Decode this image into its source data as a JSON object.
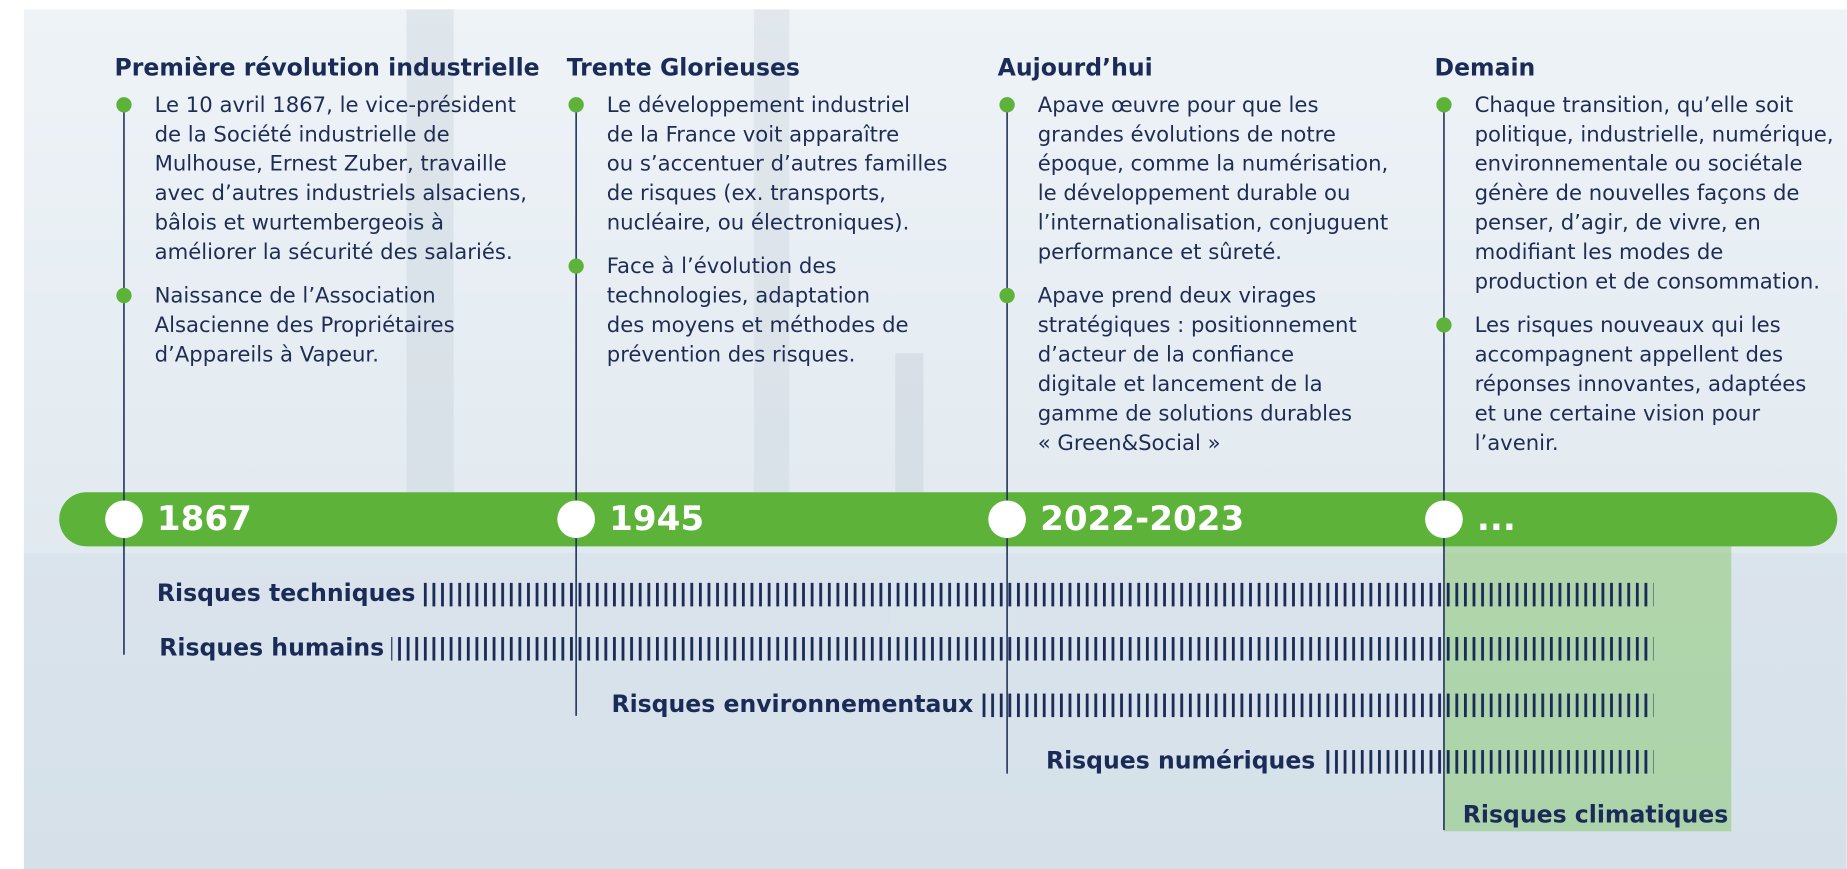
{
  "periods": [
    {
      "title": "Première révolution industrielle",
      "year": "1867",
      "bullets": [
        [
          "Le 10 avril 1867, le vice-président",
          "de la Société industrielle de",
          "Mulhouse, Ernest Zuber, travaille",
          "avec d’autres industriels alsaciens,",
          "bâlois et wurtembergeois à",
          "améliorer la sécurité des salariés."
        ],
        [
          "Naissance de l’Association",
          "Alsacienne des Propriétaires",
          "d’Appareils à Vapeur."
        ]
      ]
    },
    {
      "title": "Trente Glorieuses",
      "year": "1945",
      "bullets": [
        [
          "Le développement industriel",
          "de la France voit apparaître",
          "ou s’accentuer d’autres familles",
          "de risques (ex. transports,",
          "nucléaire, ou électroniques)."
        ],
        [
          "Face à l’évolution des",
          "technologies, adaptation",
          "des moyens et méthodes de",
          "prévention des risques."
        ]
      ]
    },
    {
      "title": "Aujourd’hui",
      "year": "2022-2023",
      "bullets": [
        [
          "Apave œuvre pour que les",
          "grandes évolutions de notre",
          "époque, comme la numérisation,",
          "le développement durable ou",
          "l’internationalisation, conjuguent",
          "performance et sûreté."
        ],
        [
          "Apave prend deux virages",
          "stratégiques : positionnement",
          "d’acteur de la confiance",
          "digitale et lancement de la",
          "gamme de solutions durables",
          "« Green&Social »"
        ]
      ]
    },
    {
      "title": "Demain",
      "year": "...",
      "bullets": [
        [
          "Chaque transition, qu’elle soit",
          "politique, industrielle, numérique,",
          "environnementale ou sociétale",
          "génère de nouvelles façons de",
          "penser, d’agir, de vivre, en",
          "modifiant les modes de",
          "production et de consommation."
        ],
        [
          "Les risques nouveaux qui les",
          "accompagnent appellent des",
          "réponses innovantes, adaptées",
          "et une certaine vision pour",
          "l’avenir."
        ]
      ]
    }
  ],
  "risks": [
    "Risques techniques",
    "Risques humains",
    "Risques environnementaux",
    "Risques numériques",
    "Risques climatiques"
  ]
}
